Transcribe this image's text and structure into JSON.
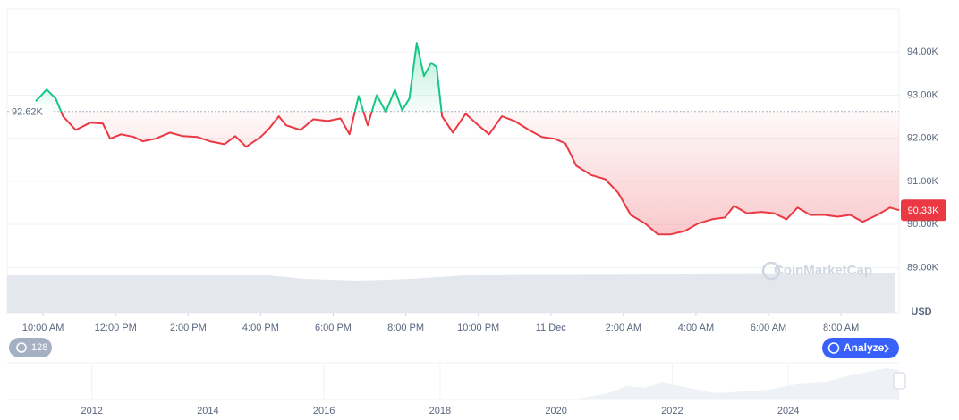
{
  "chart_data": {
    "type": "line",
    "x": [
      9.8,
      10.1,
      10.35,
      10.55,
      10.9,
      11.3,
      11.65,
      11.85,
      12.15,
      12.5,
      12.75,
      13.1,
      13.5,
      13.85,
      14.25,
      14.6,
      15.0,
      15.3,
      15.6,
      16.0,
      16.2,
      16.5,
      16.7,
      17.1,
      17.45,
      17.85,
      18.2,
      18.45,
      18.7,
      18.95,
      19.2,
      19.45,
      19.7,
      19.9,
      20.1,
      20.3,
      20.5,
      20.7,
      20.85,
      21.0,
      21.3,
      21.65,
      22.0,
      22.3,
      22.65,
      23.0,
      23.4,
      23.75,
      24.1,
      24.4,
      24.7,
      25.1,
      25.5,
      25.85,
      26.2,
      26.6,
      26.95,
      27.3,
      27.7,
      28.05,
      28.45,
      28.8,
      29.05,
      29.4,
      29.8,
      30.15,
      30.5,
      30.8,
      31.15,
      31.55,
      31.9,
      32.25,
      32.6,
      33.0,
      33.35,
      33.6
    ],
    "values": [
      92860,
      93130,
      92920,
      92510,
      92190,
      92360,
      92340,
      91990,
      92090,
      92030,
      91930,
      91990,
      92130,
      92050,
      92030,
      91930,
      91860,
      92050,
      91800,
      92030,
      92190,
      92510,
      92300,
      92190,
      92440,
      92400,
      92460,
      92090,
      92980,
      92300,
      93000,
      92610,
      93130,
      92650,
      92920,
      94210,
      93440,
      93750,
      93650,
      92510,
      92130,
      92570,
      92300,
      92090,
      92510,
      92400,
      92190,
      92030,
      91990,
      91880,
      91360,
      91150,
      91050,
      90740,
      90220,
      90020,
      89770,
      89770,
      89850,
      90020,
      90120,
      90160,
      90430,
      90260,
      90290,
      90260,
      90120,
      90390,
      90220,
      90220,
      90180,
      90220,
      90060,
      90220,
      90390,
      90330
    ],
    "color_up": "#16c784",
    "color_down": "#ea3943",
    "ylim": [
      87950,
      95000
    ],
    "yticks": [
      {
        "value": 89000,
        "label": "89.00K"
      },
      {
        "value": 90000,
        "label": "90.00K"
      },
      {
        "value": 91000,
        "label": "91.00K"
      },
      {
        "value": 92000,
        "label": "92.00K"
      },
      {
        "value": 93000,
        "label": "93.00K"
      },
      {
        "value": 94000,
        "label": "94.00K"
      }
    ],
    "xlim": [
      9.01,
      33.6
    ],
    "xticks": [
      {
        "value": 10,
        "label": "10:00 AM"
      },
      {
        "value": 12,
        "label": "12:00 PM"
      },
      {
        "value": 14,
        "label": "2:00 PM"
      },
      {
        "value": 16,
        "label": "4:00 PM"
      },
      {
        "value": 18,
        "label": "6:00 PM"
      },
      {
        "value": 20,
        "label": "8:00 PM"
      },
      {
        "value": 22,
        "label": "10:00 PM"
      },
      {
        "value": 24,
        "label": "11 Dec"
      },
      {
        "value": 26,
        "label": "2:00 AM"
      },
      {
        "value": 28,
        "label": "4:00 AM"
      },
      {
        "value": 30,
        "label": "6:00 AM"
      },
      {
        "value": 32,
        "label": "8:00 AM"
      }
    ],
    "baseline": {
      "value": 92620,
      "label": "92.62K"
    },
    "current": {
      "value": 90330,
      "label": "90.33K"
    },
    "grid": true,
    "unit": "USD",
    "navigator": {
      "xlim": [
        2010.54,
        2025.91
      ],
      "xticks": [
        2012,
        2014,
        2016,
        2018,
        2020,
        2022,
        2024
      ]
    }
  },
  "ui": {
    "badge": "128",
    "analyze": "Analyze",
    "watermark": "CoinMarketCap"
  }
}
